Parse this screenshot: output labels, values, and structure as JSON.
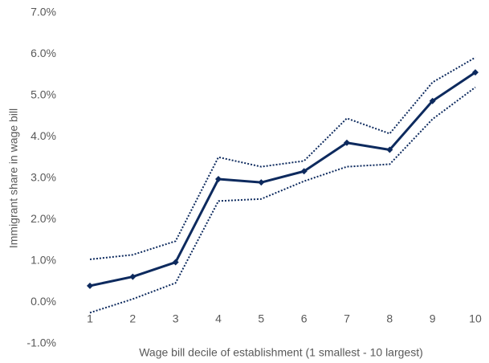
{
  "chart_data": {
    "type": "line",
    "x_label": "Wage bill decile of establishment (1 smallest - 10 largest)",
    "y_label": "Immigrant share in wage bill",
    "categories": [
      "1",
      "2",
      "3",
      "4",
      "5",
      "6",
      "7",
      "8",
      "9",
      "10"
    ],
    "series": [
      {
        "color": "#0d2a5e",
        "style": "solid",
        "marker": "diamond",
        "values": [
          0.4,
          0.62,
          0.97,
          2.98,
          2.9,
          3.17,
          3.86,
          3.69,
          4.87,
          5.56
        ]
      },
      {
        "color": "#0d2a5e",
        "style": "dotted",
        "values": [
          1.04,
          1.15,
          1.48,
          3.51,
          3.28,
          3.42,
          4.45,
          4.08,
          5.32,
          5.92
        ]
      },
      {
        "color": "#0d2a5e",
        "style": "dotted",
        "values": [
          -0.25,
          0.08,
          0.47,
          2.45,
          2.5,
          2.93,
          3.28,
          3.34,
          4.43,
          5.2
        ]
      }
    ],
    "ylim": [
      -1,
      7
    ],
    "yticks": [
      {
        "value": -1,
        "label": "-1.0%"
      },
      {
        "value": 0,
        "label": "0.0%"
      },
      {
        "value": 1,
        "label": "1.0%"
      },
      {
        "value": 2,
        "label": "2.0%"
      },
      {
        "value": 3,
        "label": "3.0%"
      },
      {
        "value": 4,
        "label": "4.0%"
      },
      {
        "value": 5,
        "label": "5.0%"
      },
      {
        "value": 6,
        "label": "6.0%"
      },
      {
        "value": 7,
        "label": "7.0%"
      }
    ],
    "grid": false
  }
}
